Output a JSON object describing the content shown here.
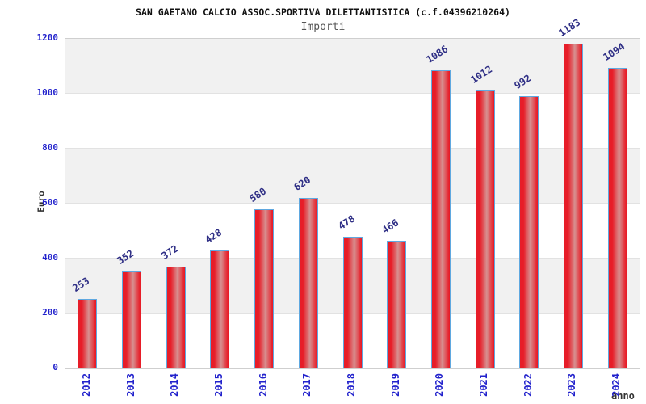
{
  "chart_data": {
    "type": "bar",
    "title": "SAN GAETANO CALCIO ASSOC.SPORTIVA DILETTANTISTICA (c.f.04396210264)",
    "subtitle": "Importi",
    "xlabel": "anno",
    "ylabel": "Euro",
    "categories": [
      "2012",
      "2013",
      "2014",
      "2015",
      "2016",
      "2017",
      "2018",
      "2019",
      "2020",
      "2021",
      "2022",
      "2023",
      "2024"
    ],
    "values": [
      253,
      352,
      372,
      428,
      580,
      620,
      478,
      466,
      1086,
      1012,
      992,
      1183,
      1094
    ],
    "ylim": [
      0,
      1200
    ],
    "yticks": [
      0,
      200,
      400,
      600,
      800,
      1000,
      1200
    ],
    "legend_position": "none",
    "grid": "alternating-horizontal-bands",
    "value_labels_rotated": true,
    "colors": {
      "bar_edge": "#e71d28",
      "bar_center": "#d79090",
      "bar_border": "#5fa8e0",
      "tick_label": "#2222cc",
      "value_label": "#2e2e85",
      "band": "#f1f1f1",
      "plot_border": "#cfcfcf",
      "gridline": "#e2e2e2",
      "axis_title": "#333333",
      "title": "#111111",
      "subtitle": "#555555",
      "background": "#ffffff"
    }
  }
}
